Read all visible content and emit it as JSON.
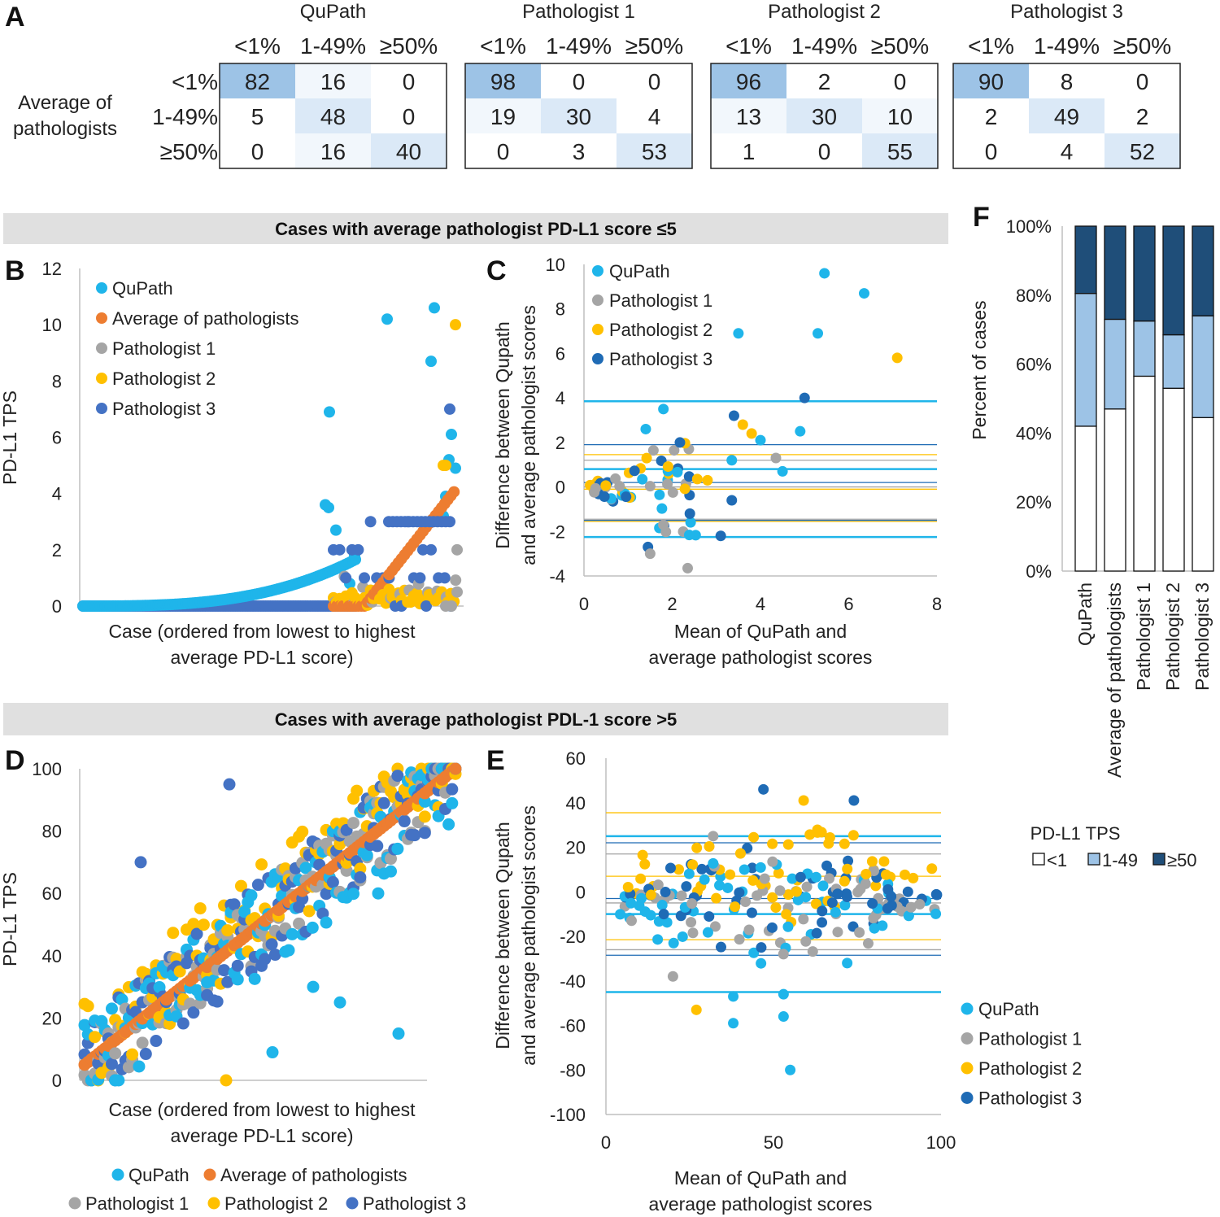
{
  "panel_letters": {
    "A": "A",
    "B": "B",
    "C": "C",
    "D": "D",
    "E": "E",
    "F": "F"
  },
  "colors": {
    "qupath": "#1fb5ea",
    "average": "#ed7d31",
    "pathologist1": "#a5a5a5",
    "pathologist2": "#ffc000",
    "pathologist3": "#4472c4",
    "pathologist3_ba": "#1f6bb5",
    "cm_high": "#9dc3e6",
    "cm_mid": "#dbe9f7",
    "cm_low": "#f2f7fc",
    "bar_low": "#ffffff",
    "bar_mid": "#9dc3e6",
    "bar_high": "#1f4e79",
    "banner": "#e0e0e0",
    "axis": "#bfbfbf"
  },
  "banners": {
    "top": "Cases with average pathologist PD-L1 score ≤5",
    "bottom": "Cases with average pathologist PDL-1 score >5"
  },
  "chart_data": [
    {
      "id": "A",
      "type": "table",
      "row_title": [
        "Average of",
        "pathologists"
      ],
      "row_labels": [
        "<1%",
        "1-49%",
        "≥50%"
      ],
      "col_labels": [
        "<1%",
        "1-49%",
        "≥50%"
      ],
      "tables": [
        {
          "title": "QuPath",
          "values": [
            [
              82,
              16,
              0
            ],
            [
              5,
              48,
              0
            ],
            [
              0,
              16,
              40
            ]
          ]
        },
        {
          "title": "Pathologist 1",
          "values": [
            [
              98,
              0,
              0
            ],
            [
              19,
              30,
              4
            ],
            [
              0,
              3,
              53
            ]
          ]
        },
        {
          "title": "Pathologist 2",
          "values": [
            [
              96,
              2,
              0
            ],
            [
              13,
              30,
              10
            ],
            [
              1,
              0,
              55
            ]
          ]
        },
        {
          "title": "Pathologist 3",
          "values": [
            [
              90,
              8,
              0
            ],
            [
              2,
              49,
              2
            ],
            [
              0,
              4,
              52
            ]
          ]
        }
      ]
    },
    {
      "id": "B",
      "type": "scatter",
      "ylabel": "PD-L1 TPS",
      "xlabel": [
        "Case (ordered from lowest to highest",
        "average PD-L1 score)"
      ],
      "ylim": [
        0,
        12
      ],
      "yticks": [
        "0",
        "2",
        "4",
        "6",
        "8",
        "10",
        "12"
      ],
      "legend": [
        "QuPath",
        "Average of pathologists",
        "Pathologist 1",
        "Pathologist 2",
        "Pathologist 3"
      ]
    },
    {
      "id": "C",
      "type": "scatter",
      "xlabel": [
        "Mean of QuPath and",
        "average pathologist scores"
      ],
      "ylabel": [
        "Difference between Qupath",
        "and average pathologist scores"
      ],
      "xlim": [
        0,
        8
      ],
      "ylim": [
        -4,
        10
      ],
      "xticks": [
        "0",
        "2",
        "4",
        "6",
        "8"
      ],
      "yticks": [
        "-4",
        "-2",
        "0",
        "2",
        "4",
        "6",
        "8",
        "10"
      ],
      "legend": [
        "QuPath",
        "Pathologist 1",
        "Pathologist 2",
        "Pathologist 3"
      ],
      "lines": {
        "qupath": [
          3.85,
          0.8,
          -2.25
        ],
        "pathologist1": [
          1.2,
          0.0,
          -1.45
        ],
        "pathologist2": [
          1.45,
          -0.1,
          -1.55
        ],
        "pathologist3": [
          1.9,
          0.2,
          -1.5
        ]
      }
    },
    {
      "id": "D",
      "type": "scatter",
      "ylabel": "PD-L1 TPS",
      "xlabel": [
        "Case (ordered from lowest to highest",
        "average PD-L1 score)"
      ],
      "ylim": [
        0,
        100
      ],
      "yticks": [
        "0",
        "20",
        "40",
        "60",
        "80",
        "100"
      ],
      "legend": [
        "QuPath",
        "Average of pathologists",
        "Pathologist 1",
        "Pathologist 2",
        "Pathologist 3"
      ]
    },
    {
      "id": "E",
      "type": "scatter",
      "xlabel": [
        "Mean of QuPath and",
        "average pathologist scores"
      ],
      "ylabel": [
        "Difference between Qupath",
        "and average pathologist scores"
      ],
      "xlim": [
        0,
        100
      ],
      "ylim": [
        -100,
        60
      ],
      "xticks": [
        "0",
        "50",
        "100"
      ],
      "yticks": [
        "-100",
        "-80",
        "-60",
        "-40",
        "-20",
        "0",
        "20",
        "40",
        "60"
      ],
      "legend": [
        "QuPath",
        "Pathologist 1",
        "Pathologist 2",
        "Pathologist 3"
      ],
      "lines": {
        "qupath": [
          25,
          -10,
          -45
        ],
        "pathologist1": [
          17,
          -5,
          -26
        ],
        "pathologist2": [
          35.5,
          7,
          -21.5
        ],
        "pathologist3": [
          22,
          -3,
          -28.5
        ]
      }
    },
    {
      "id": "F",
      "type": "bar",
      "stacked": true,
      "ylabel": "Percent of cases",
      "yticks": [
        "0%",
        "20%",
        "40%",
        "60%",
        "80%",
        "100%"
      ],
      "categories": [
        "QuPath",
        "Average of pathologists",
        "Pathologist 1",
        "Pathologist 2",
        "Pathologist 3"
      ],
      "series": [
        {
          "name": "<1",
          "values": [
            42,
            47,
            56.5,
            53,
            44.5
          ]
        },
        {
          "name": "1-49",
          "values": [
            38.5,
            26,
            16,
            15.5,
            29.5
          ]
        },
        {
          "name": "≥50",
          "values": [
            19.5,
            27,
            27.5,
            31.5,
            26
          ]
        }
      ],
      "legend_title": "PD-L1 TPS"
    }
  ]
}
